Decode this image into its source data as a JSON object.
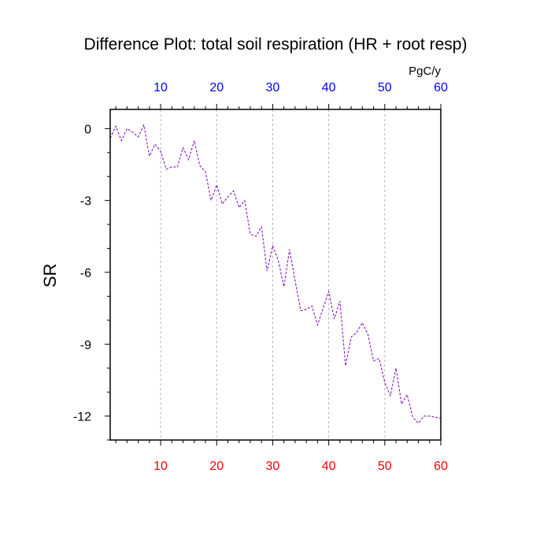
{
  "chart_data": {
    "type": "line",
    "title": "Difference Plot: total soil respiration (HR + root resp)",
    "units_label": "PgC/y",
    "ylabel": "SR",
    "xlim": [
      1,
      60
    ],
    "ylim": [
      -13,
      0.8
    ],
    "grid": "vertical dashed lines at x ticks",
    "x_ticks": [
      10,
      20,
      30,
      40,
      50,
      60
    ],
    "y_ticks": [
      0,
      -3,
      -6,
      -9,
      -12
    ],
    "bottom_axis_color": "#ff0000",
    "top_axis_color": "#0000ff",
    "series": [
      {
        "color": "#7a00b8",
        "style": "dashed",
        "x": [
          1,
          2,
          3,
          4,
          5,
          6,
          7,
          8,
          9,
          10,
          11,
          12,
          13,
          14,
          15,
          16,
          17,
          18,
          19,
          20,
          21,
          22,
          23,
          24,
          25,
          26,
          27,
          28,
          29,
          30,
          31,
          32,
          33,
          34,
          35,
          36,
          37,
          38,
          39,
          40,
          41,
          42,
          43,
          44,
          45,
          46,
          47,
          48,
          49,
          50,
          51,
          52,
          53,
          54,
          55,
          56,
          57,
          58,
          59,
          60
        ],
        "values": [
          -0.4,
          0.1,
          -0.5,
          0.0,
          -0.15,
          -0.35,
          0.15,
          -1.15,
          -0.65,
          -0.95,
          -1.7,
          -1.6,
          -1.6,
          -0.8,
          -1.3,
          -0.5,
          -1.55,
          -1.8,
          -3.0,
          -2.35,
          -3.15,
          -2.85,
          -2.6,
          -3.3,
          -3.0,
          -4.4,
          -4.5,
          -4.1,
          -5.95,
          -4.9,
          -5.5,
          -6.6,
          -5.05,
          -6.35,
          -7.6,
          -7.55,
          -7.4,
          -8.2,
          -7.5,
          -6.8,
          -7.95,
          -7.2,
          -9.9,
          -8.7,
          -8.5,
          -8.1,
          -8.6,
          -9.7,
          -9.6,
          -10.6,
          -11.15,
          -10.0,
          -11.5,
          -11.1,
          -12.05,
          -12.3,
          -12.0,
          -12.0,
          -12.05,
          -12.1
        ]
      }
    ]
  }
}
